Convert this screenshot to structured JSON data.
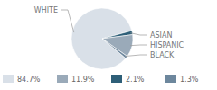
{
  "chart_data": {
    "type": "pie",
    "categories": [
      "WHITE",
      "ASIAN",
      "HISPANIC",
      "BLACK"
    ],
    "values": [
      84.7,
      2.1,
      11.9,
      1.3
    ],
    "value_labels": [
      "84.7%",
      "2.1%",
      "11.9%",
      "1.3%"
    ],
    "colors": [
      "#d9e0e8",
      "#2e5f78",
      "#9aaab9",
      "#6d879d"
    ],
    "legend": "bottom"
  }
}
